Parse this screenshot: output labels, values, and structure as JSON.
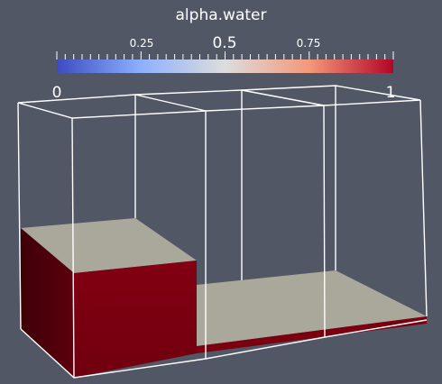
{
  "legend": {
    "title": "alpha.water",
    "range": [
      0,
      1
    ],
    "min_label": "0",
    "max_label": "1",
    "ticks": [
      "0.25",
      "0.5",
      "0.75"
    ],
    "colormap": "cool-to-warm",
    "colors": {
      "low": "#3b4cc0",
      "mid": "#dddddd",
      "high": "#b40426"
    }
  },
  "scene": {
    "background": "#525766",
    "outline_color": "#ffffff",
    "water_color": "#7a0010",
    "water_side_dark": "#4a000b",
    "free_surface_color": "#a9a89b"
  }
}
